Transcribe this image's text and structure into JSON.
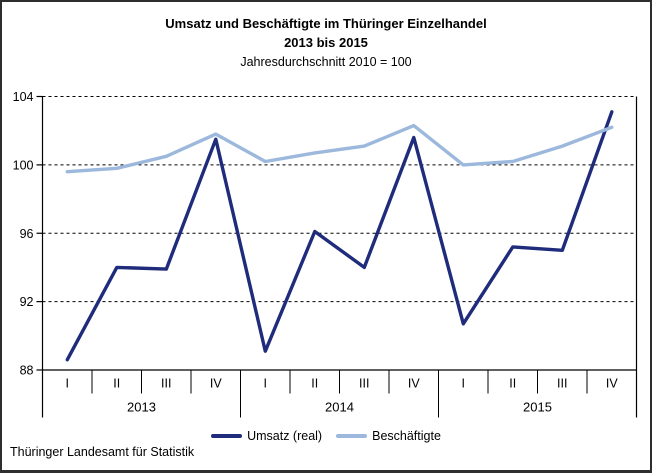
{
  "header": {
    "title_line1": "Umsatz und Beschäftigte im Thüringer Einzelhandel",
    "title_line2": "2013 bis 2015",
    "subtitle": "Jahresdurchschnitt 2010 = 100"
  },
  "footer": {
    "text": "Thüringer Landesamt für Statistik"
  },
  "chart_data": {
    "type": "line",
    "title": "Umsatz und Beschäftigte im Thüringer Einzelhandel 2013 bis 2015",
    "subtitle": "Jahresdurchschnitt 2010 = 100",
    "categories": [
      "I",
      "II",
      "III",
      "IV",
      "I",
      "II",
      "III",
      "IV",
      "I",
      "II",
      "III",
      "IV"
    ],
    "year_groups": [
      {
        "label": "2013",
        "count": 4
      },
      {
        "label": "2014",
        "count": 4
      },
      {
        "label": "2015",
        "count": 4
      }
    ],
    "series": [
      {
        "name": "Umsatz (real)",
        "color": "#1F2B7B",
        "values": [
          88.6,
          94.0,
          93.9,
          101.5,
          89.1,
          96.1,
          94.0,
          101.6,
          90.7,
          95.2,
          95.0,
          103.1
        ]
      },
      {
        "name": "Beschäftigte",
        "color": "#9CB8DC",
        "values": [
          99.6,
          99.8,
          100.5,
          101.8,
          100.2,
          100.7,
          101.1,
          102.3,
          100.0,
          100.2,
          101.1,
          102.2
        ]
      }
    ],
    "ylim": [
      88,
      104
    ],
    "yticks": [
      88,
      92,
      96,
      100,
      104
    ],
    "grid": "horizontal-dashed",
    "legend_position": "bottom",
    "axis_color": "#000000",
    "text_color": "#000000"
  }
}
